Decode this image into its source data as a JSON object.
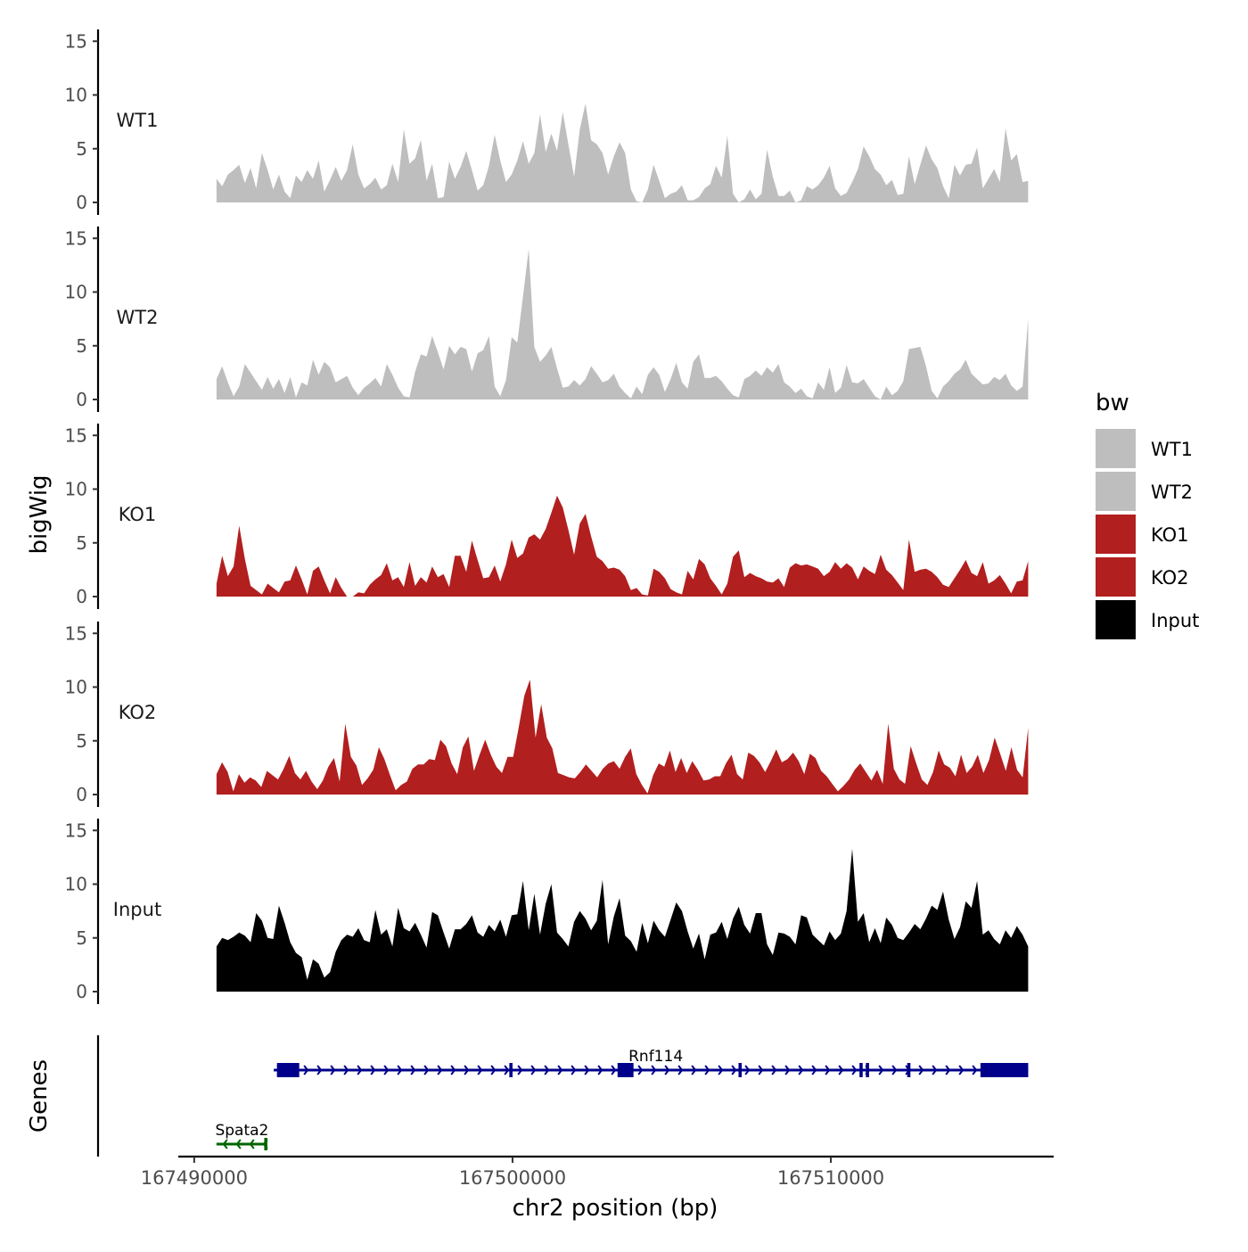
{
  "chart_data": {
    "type": "area",
    "title": "",
    "xlabel": "chr2 position (bp)",
    "ylabel": "bigWig",
    "genes_label": "Genes",
    "xlim": [
      167489500,
      167517000
    ],
    "x_ticks": [
      167490000,
      167500000,
      167510000
    ],
    "x_tick_labels": [
      "167490000",
      "167500000",
      "167510000"
    ],
    "ylim": [
      0,
      16
    ],
    "y_ticks": [
      0,
      5,
      10,
      15
    ],
    "y_tick_labels": [
      "0",
      "5",
      "10",
      "15"
    ],
    "track_x_range": [
      167490700,
      167516200
    ],
    "legend": {
      "title": "bw",
      "entries": [
        {
          "name": "WT1",
          "color": "#bebebe"
        },
        {
          "name": "WT2",
          "color": "#bebebe"
        },
        {
          "name": "KO1",
          "color": "#b21f1f"
        },
        {
          "name": "KO2",
          "color": "#b21f1f"
        },
        {
          "name": "Input",
          "color": "#000000"
        }
      ]
    },
    "series": [
      {
        "name": "WT1",
        "color": "#bebebe",
        "values": [
          2.2,
          1.5,
          2.6,
          3.0,
          3.5,
          1.8,
          3.2,
          1.3,
          4.6,
          3.0,
          1.2,
          2.6,
          1.0,
          0.4,
          2.5,
          1.9,
          3.0,
          2.2,
          3.9,
          1.0,
          2.1,
          3.3,
          2.0,
          3.0,
          5.4,
          2.6,
          1.3,
          1.7,
          2.3,
          1.2,
          1.6,
          3.6,
          1.9,
          6.8,
          3.6,
          4.1,
          5.8,
          2.0,
          3.6,
          0.4,
          0.5,
          3.8,
          2.2,
          3.3,
          4.8,
          3.0,
          1.1,
          1.6,
          3.4,
          6.3,
          3.9,
          1.9,
          2.6,
          3.9,
          5.7,
          3.6,
          4.6,
          8.2,
          4.7,
          6.4,
          4.8,
          8.4,
          5.4,
          2.4,
          6.8,
          9.2,
          5.8,
          5.4,
          4.6,
          2.6,
          4.3,
          5.6,
          4.6,
          1.2,
          0.1,
          0,
          1.2,
          3.5,
          2.0,
          0.4,
          0.8,
          1.0,
          1.6,
          0.2,
          0.2,
          0.5,
          1.3,
          1.7,
          3.4,
          2.3,
          6.2,
          0.8,
          0,
          0.3,
          1.2,
          0.3,
          0.8,
          4.9,
          2.4,
          0.6,
          0.6,
          1.1,
          0,
          0.2,
          1.5,
          1.2,
          1.6,
          2.3,
          3.4,
          1.3,
          0.6,
          0.9,
          1.9,
          3.1,
          5.2,
          4.3,
          3.1,
          2.6,
          1.6,
          2.1,
          0.7,
          0.8,
          4.3,
          1.7,
          3.5,
          5.3,
          4.0,
          3.2,
          1.5,
          0.4,
          3.5,
          2.5,
          3.5,
          3.6,
          5.1,
          1.3,
          2.2,
          3.1,
          1.9,
          6.9,
          3.9,
          4.5,
          1.9,
          2.0
        ]
      },
      {
        "name": "WT2",
        "color": "#bebebe",
        "values": [
          1.9,
          3.1,
          1.6,
          0.3,
          1.2,
          3.3,
          2.5,
          1.7,
          0.9,
          2.1,
          1.0,
          1.9,
          0.6,
          2.1,
          0.2,
          1.6,
          1.3,
          3.7,
          2.3,
          3.5,
          3.0,
          1.6,
          1.9,
          2.2,
          1.1,
          0.4,
          1.1,
          1.5,
          2.0,
          1.2,
          3.3,
          2.3,
          1.1,
          0.3,
          0.2,
          2.6,
          4.2,
          4.0,
          5.9,
          4.4,
          2.8,
          5.0,
          4.2,
          4.9,
          4.7,
          2.6,
          4.3,
          4.6,
          5.9,
          1.2,
          0.3,
          1.8,
          5.8,
          5.3,
          9.6,
          14.0,
          4.9,
          3.5,
          4.1,
          4.9,
          2.9,
          1.1,
          1.2,
          1.8,
          1.3,
          1.9,
          3.1,
          2.4,
          1.6,
          1.8,
          2.4,
          1.2,
          0.6,
          0.1,
          1.2,
          0.5,
          2.3,
          3.0,
          2.3,
          0.7,
          1.9,
          3.4,
          1.6,
          1.0,
          3.5,
          4.2,
          2.0,
          2.0,
          2.2,
          1.7,
          1.0,
          0.4,
          0.2,
          1.9,
          2.2,
          2.7,
          2.2,
          3.0,
          2.5,
          3.3,
          1.6,
          1.2,
          0.6,
          1.0,
          0.3,
          0.1,
          1.6,
          0.9,
          3.0,
          0.6,
          1.1,
          3.2,
          1.6,
          1.5,
          1.9,
          1.1,
          0.3,
          0,
          1.2,
          0.4,
          0.8,
          1.7,
          4.7,
          4.8,
          4.9,
          3.1,
          0.8,
          0.1,
          1.2,
          1.7,
          2.4,
          2.8,
          3.7,
          2.4,
          1.9,
          1.4,
          1.5,
          2.1,
          1.8,
          2.4,
          1.3,
          0.8,
          1.2,
          7.5
        ]
      },
      {
        "name": "KO1",
        "color": "#b21f1f",
        "values": [
          1.2,
          3.8,
          1.9,
          2.8,
          6.6,
          3.5,
          1.0,
          0.6,
          0.2,
          1.2,
          0.8,
          0.4,
          1.4,
          1.5,
          2.9,
          1.6,
          0.2,
          2.4,
          2.8,
          1.5,
          0.3,
          1.8,
          0.8,
          0,
          0,
          0.4,
          0.3,
          1.1,
          1.6,
          2.0,
          3.1,
          1.5,
          1.8,
          0.9,
          3.2,
          1.0,
          1.8,
          1.3,
          2.8,
          1.8,
          2.1,
          0.9,
          3.8,
          3.8,
          2.3,
          5.2,
          3.4,
          1.7,
          1.8,
          2.9,
          1.4,
          3.0,
          5.3,
          3.6,
          4.0,
          5.5,
          5.8,
          5.3,
          6.3,
          7.8,
          9.4,
          8.3,
          6.2,
          3.9,
          6.8,
          7.7,
          5.6,
          3.7,
          3.3,
          2.6,
          2.7,
          2.5,
          1.9,
          0.6,
          0.8,
          0.2,
          0.1,
          2.6,
          2.3,
          1.7,
          0.7,
          0.4,
          0.2,
          2.4,
          1.6,
          3.5,
          3.0,
          1.7,
          1.0,
          0.2,
          1.2,
          3.7,
          4.3,
          1.8,
          2.2,
          1.9,
          1.7,
          1.4,
          1.3,
          1.7,
          0.9,
          2.7,
          3.1,
          2.9,
          3.0,
          2.8,
          2.6,
          1.9,
          2.3,
          3.2,
          2.6,
          3.1,
          2.7,
          1.6,
          2.8,
          2.4,
          2.1,
          3.9,
          2.5,
          2.0,
          1.3,
          0.6,
          5.3,
          2.3,
          2.5,
          2.6,
          2.3,
          1.8,
          1.1,
          0.9,
          1.7,
          2.5,
          3.4,
          2.2,
          1.9,
          3.2,
          1.2,
          1.5,
          2.0,
          1.2,
          0.3,
          1.4,
          1.5,
          3.3
        ]
      },
      {
        "name": "KO2",
        "color": "#b21f1f",
        "values": [
          1.9,
          3.0,
          2.1,
          0.3,
          1.9,
          1.1,
          1.6,
          1.3,
          0.7,
          2.2,
          1.8,
          1.4,
          2.4,
          3.6,
          2.0,
          1.4,
          2.2,
          1.2,
          0.5,
          1.3,
          2.6,
          3.4,
          1.2,
          6.6,
          3.5,
          2.7,
          0.9,
          1.5,
          2.3,
          4.4,
          3.3,
          1.8,
          0.4,
          0.9,
          1.2,
          2.4,
          2.8,
          2.8,
          3.3,
          3.2,
          5.1,
          4.5,
          2.9,
          1.9,
          4.4,
          5.4,
          2.2,
          3.7,
          5.1,
          3.7,
          2.6,
          2.0,
          3.5,
          3.5,
          6.3,
          9.2,
          10.7,
          5.3,
          8.4,
          5.3,
          4.3,
          2.0,
          1.8,
          1.6,
          1.5,
          2.1,
          2.8,
          2.2,
          1.6,
          2.4,
          2.9,
          3.1,
          2.4,
          3.5,
          4.3,
          1.9,
          0.9,
          0.1,
          1.8,
          2.9,
          2.6,
          4.1,
          2.1,
          3.4,
          2.0,
          3.1,
          2.3,
          1.3,
          1.4,
          1.7,
          1.7,
          2.9,
          3.7,
          1.9,
          1.4,
          3.9,
          3.6,
          3.0,
          2.1,
          3.1,
          4.2,
          3.0,
          3.3,
          3.9,
          3.1,
          1.9,
          3.8,
          3.4,
          2.2,
          1.7,
          1.0,
          0.3,
          0.8,
          1.4,
          2.3,
          2.9,
          2.1,
          1.3,
          2.3,
          1.0,
          6.6,
          2.4,
          1.4,
          1.0,
          4.5,
          2.9,
          1.4,
          0.9,
          2.1,
          4.1,
          2.8,
          2.5,
          1.7,
          3.7,
          2.0,
          2.6,
          3.7,
          2.0,
          3.2,
          5.3,
          3.8,
          2.2,
          4.4,
          2.3,
          1.6,
          6.2
        ]
      },
      {
        "name": "Input",
        "color": "#000000",
        "values": [
          4.2,
          5.0,
          4.8,
          5.1,
          5.5,
          5.2,
          4.6,
          7.3,
          6.6,
          5.0,
          4.9,
          8.0,
          6.4,
          4.6,
          3.6,
          3.2,
          1.1,
          3.0,
          2.6,
          1.3,
          1.8,
          3.7,
          4.8,
          5.3,
          5.1,
          5.9,
          4.8,
          4.6,
          7.6,
          5.3,
          5.8,
          4.2,
          7.8,
          5.9,
          5.6,
          6.4,
          5.3,
          4.1,
          7.4,
          7.1,
          5.5,
          4.0,
          5.8,
          5.8,
          6.3,
          7.1,
          5.5,
          5.1,
          6.2,
          5.6,
          6.7,
          5.1,
          7.1,
          7.2,
          10.3,
          5.7,
          9.1,
          5.3,
          8.2,
          10.0,
          5.5,
          4.9,
          4.2,
          6.5,
          7.5,
          6.8,
          5.7,
          6.6,
          10.4,
          4.4,
          7.0,
          8.7,
          5.2,
          4.7,
          3.7,
          6.4,
          4.5,
          6.6,
          5.7,
          5.1,
          6.7,
          8.3,
          7.5,
          5.6,
          4.0,
          5.4,
          3.0,
          5.3,
          5.5,
          6.5,
          4.9,
          6.8,
          7.9,
          6.2,
          5.4,
          7.3,
          7.3,
          4.4,
          3.4,
          5.5,
          5.4,
          5.1,
          4.4,
          7.1,
          6.9,
          5.3,
          4.8,
          4.3,
          5.6,
          4.8,
          5.4,
          7.5,
          13.3,
          6.5,
          7.3,
          4.6,
          5.9,
          4.5,
          6.9,
          6.2,
          5.0,
          4.8,
          5.5,
          6.3,
          5.8,
          6.8,
          8.0,
          7.6,
          9.3,
          6.7,
          4.9,
          6.0,
          8.4,
          7.8,
          10.3,
          5.3,
          5.7,
          4.9,
          4.4,
          5.7,
          5.0,
          6.1,
          5.3,
          4.2
        ]
      }
    ],
    "track_labels": [
      "WT1",
      "WT2",
      "KO1",
      "KO2",
      "Input"
    ],
    "genes": [
      {
        "name": "Rnf114",
        "strand": "+",
        "color": "#00008b",
        "start": 167492500,
        "end": 167516200,
        "exons": [
          [
            167492600,
            167493300
          ],
          [
            167499900,
            167500000
          ],
          [
            167503300,
            167503800
          ],
          [
            167507100,
            167507200
          ],
          [
            167510900,
            167511000
          ],
          [
            167511100,
            167511200
          ],
          [
            167512400,
            167512500
          ],
          [
            167514700,
            167516200
          ]
        ]
      },
      {
        "name": "Spata2",
        "strand": "-",
        "color": "#006400",
        "start": 167490700,
        "end": 167492300,
        "exons": [
          [
            167492200,
            167492300
          ]
        ]
      }
    ]
  }
}
